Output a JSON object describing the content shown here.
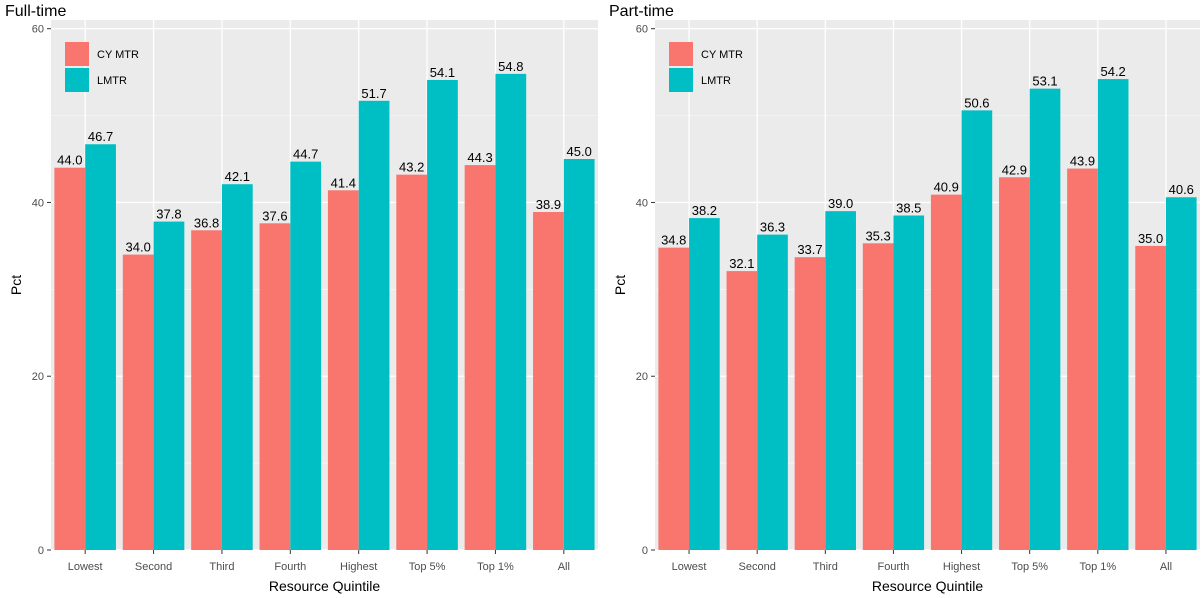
{
  "chart_data": [
    {
      "type": "bar",
      "title": "Full-time",
      "xlabel": "Resource Quintile",
      "ylabel": "Pct",
      "ylim": [
        0,
        61
      ],
      "yticks": [
        0,
        20,
        40,
        60
      ],
      "grid": true,
      "legend_position": "top-left",
      "categories": [
        "Lowest",
        "Second",
        "Third",
        "Fourth",
        "Highest",
        "Top 5%",
        "Top 1%",
        "All"
      ],
      "series": [
        {
          "name": "CY MTR",
          "color": "#F8766D",
          "values": [
            44.0,
            34.0,
            36.8,
            37.6,
            41.4,
            43.2,
            44.3,
            38.9
          ],
          "labels": [
            "44.0",
            "34.0",
            "36.8",
            "37.6",
            "41.4",
            "43.2",
            "44.3",
            "38.9"
          ]
        },
        {
          "name": "LMTR",
          "color": "#00BFC4",
          "values": [
            46.7,
            37.8,
            42.1,
            44.7,
            51.7,
            54.1,
            54.8,
            45.0
          ],
          "labels": [
            "46.7",
            "37.8",
            "42.1",
            "44.7",
            "51.7",
            "54.1",
            "54.8",
            "45.0"
          ]
        }
      ]
    },
    {
      "type": "bar",
      "title": "Part-time",
      "xlabel": "Resource Quintile",
      "ylabel": "Pct",
      "ylim": [
        0,
        61
      ],
      "yticks": [
        0,
        20,
        40,
        60
      ],
      "grid": true,
      "legend_position": "top-left",
      "categories": [
        "Lowest",
        "Second",
        "Third",
        "Fourth",
        "Highest",
        "Top 5%",
        "Top 1%",
        "All"
      ],
      "series": [
        {
          "name": "CY MTR",
          "color": "#F8766D",
          "values": [
            34.8,
            32.1,
            33.7,
            35.3,
            40.9,
            42.9,
            43.9,
            35.0
          ],
          "labels": [
            "34.8",
            "32.1",
            "33.7",
            "35.3",
            "40.9",
            "42.9",
            "43.9",
            "35.0"
          ]
        },
        {
          "name": "LMTR",
          "color": "#00BFC4",
          "values": [
            38.2,
            36.3,
            39.0,
            38.5,
            50.6,
            53.1,
            54.2,
            40.6
          ],
          "labels": [
            "38.2",
            "36.3",
            "39.0",
            "38.5",
            "50.6",
            "53.1",
            "54.2",
            "40.6"
          ]
        }
      ]
    }
  ]
}
